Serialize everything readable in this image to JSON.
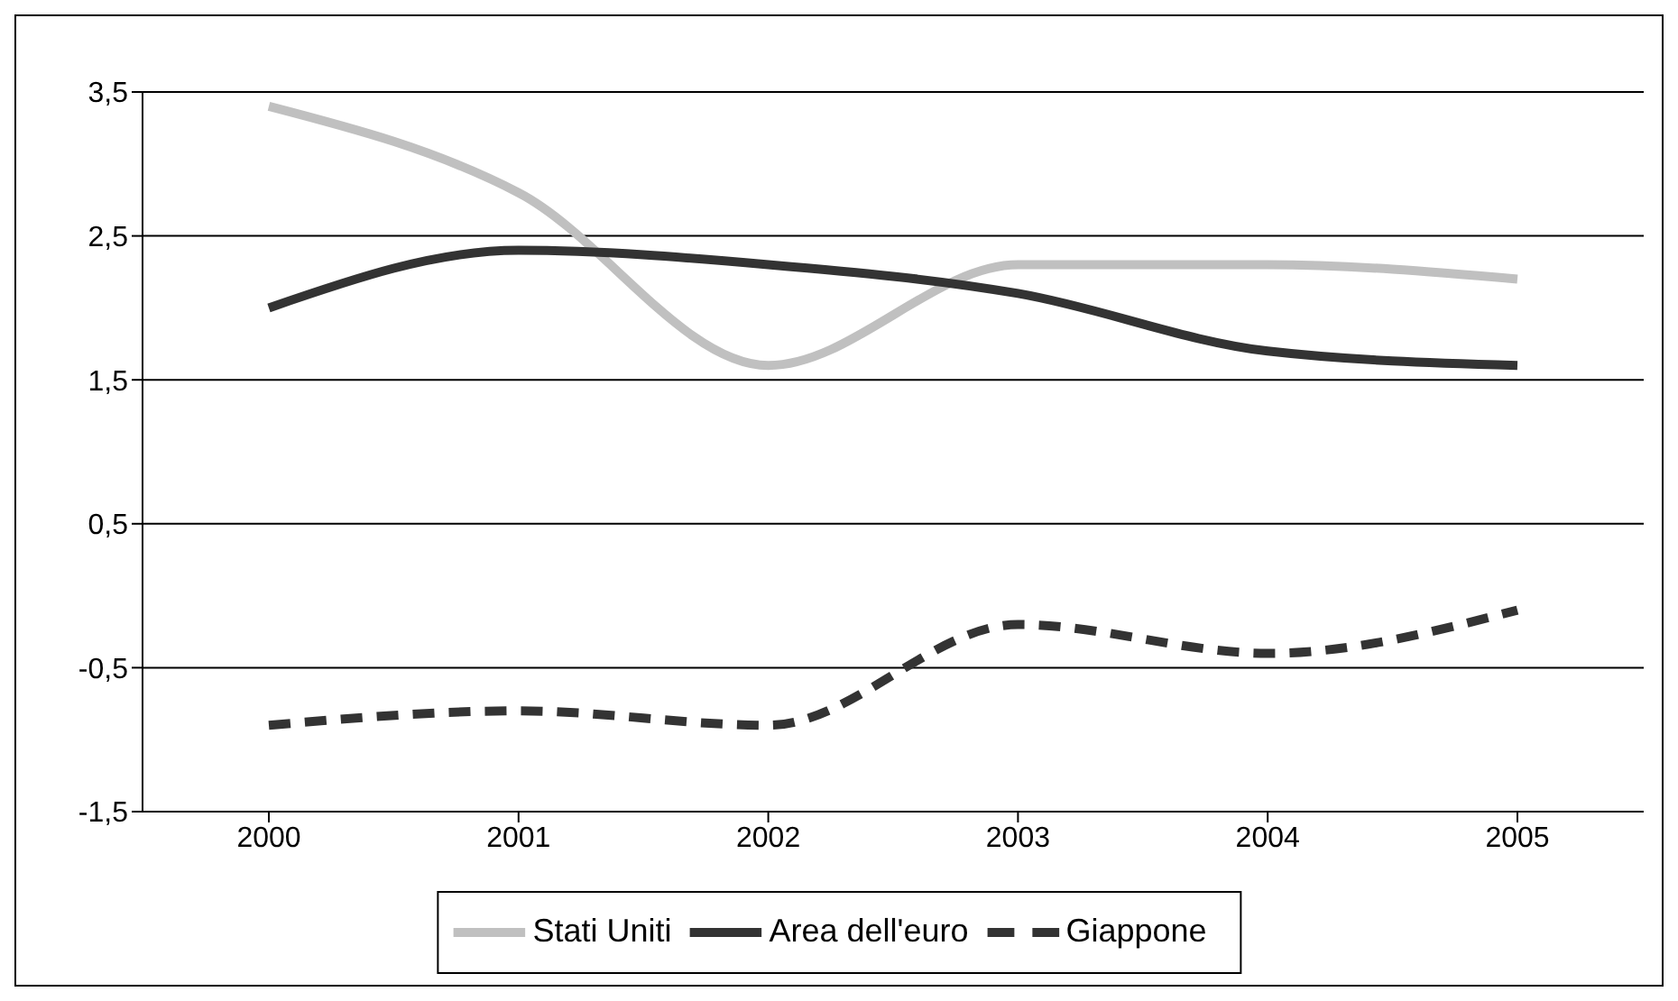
{
  "chart_data": {
    "type": "line",
    "categories": [
      "2000",
      "2001",
      "2002",
      "2003",
      "2004",
      "2005"
    ],
    "series": [
      {
        "name": "Stati Uniti",
        "color": "#c0c0c0",
        "line_style": "solid",
        "values": [
          3.4,
          2.8,
          1.6,
          2.3,
          2.3,
          2.2
        ]
      },
      {
        "name": "Area dell'euro",
        "color": "#333333",
        "line_style": "solid",
        "values": [
          2.0,
          2.4,
          2.3,
          2.1,
          1.7,
          1.6
        ]
      },
      {
        "name": "Giappone",
        "color": "#333333",
        "line_style": "dashed",
        "values": [
          -0.9,
          -0.8,
          -0.9,
          -0.2,
          -0.4,
          -0.1
        ]
      }
    ],
    "ylim": [
      -1.5,
      3.5
    ],
    "yticks": [
      {
        "value": -1.5,
        "label": "-1,5"
      },
      {
        "value": -0.5,
        "label": "-0,5"
      },
      {
        "value": 0.5,
        "label": "0,5"
      },
      {
        "value": 1.5,
        "label": "1,5"
      },
      {
        "value": 2.5,
        "label": "2,5"
      },
      {
        "value": 3.5,
        "label": "3,5"
      }
    ],
    "grid": "y",
    "legend": "bottom",
    "marker": "none"
  }
}
